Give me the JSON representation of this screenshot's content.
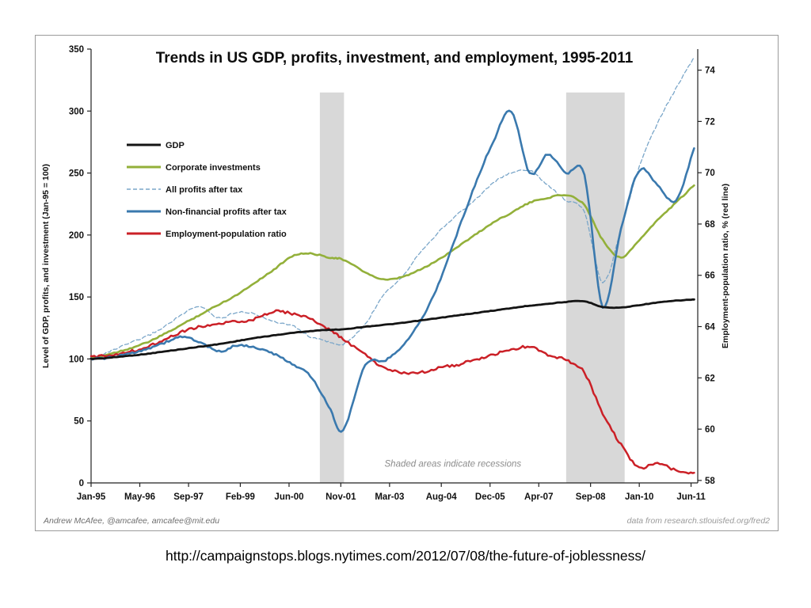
{
  "page": {
    "caption": "http://campaignstops.blogs.nytimes.com/2012/07/08/the-future-of-joblessness/"
  },
  "chart_data": {
    "type": "line",
    "title": "Trends in US GDP, profits, investment, and employment, 1995-2011",
    "annotation": "Shaded areas indicate recessions",
    "credit_left": "Andrew McAfee, @amcafee, amcafee@mit.edu",
    "credit_right": "data from research.stlouisfed.org/fred2",
    "band_color": "#d8d8d8",
    "recession_top_value": 315,
    "recessions": [
      {
        "from": 2001.26,
        "to": 2001.92
      },
      {
        "from": 2008.0,
        "to": 2009.6
      }
    ],
    "left_axis": {
      "label": "Level of GDP, profits, and investment (Jan-95 = 100)",
      "min": 0,
      "max": 350,
      "ticks": [
        0,
        50,
        100,
        150,
        200,
        250,
        300,
        350
      ]
    },
    "right_axis": {
      "label": "Employment-population ratio, % (red line)",
      "min": 58,
      "max": 74,
      "ticks": [
        58,
        60,
        62,
        64,
        66,
        68,
        70,
        72,
        74
      ],
      "left_equiv_min": 2,
      "left_per_unit": 20.6875
    },
    "x_axis": {
      "min": 1995.0,
      "max": 2011.6,
      "tick_labels": [
        "Jan-95",
        "May-96",
        "Sep-97",
        "Feb-99",
        "Jun-00",
        "Nov-01",
        "Mar-03",
        "Aug-04",
        "Dec-05",
        "Apr-07",
        "Sep-08",
        "Jan-10",
        "Jun-11"
      ],
      "tick_positions": [
        1995.0,
        1996.333,
        1997.667,
        1999.083,
        2000.417,
        2001.833,
        2003.167,
        2004.583,
        2005.917,
        2007.25,
        2008.667,
        2010.0,
        2011.417
      ]
    },
    "x": [
      1995,
      1995.5,
      1996,
      1996.5,
      1997,
      1997.5,
      1998,
      1998.5,
      1999,
      1999.5,
      2000,
      2000.5,
      2001,
      2001.5,
      2001.9,
      2002.5,
      2003,
      2003.5,
      2004,
      2004.5,
      2005,
      2005.5,
      2006,
      2006.5,
      2007,
      2007.5,
      2008,
      2008.5,
      2009,
      2009.5,
      2010,
      2010.5,
      2011,
      2011.5
    ],
    "series": [
      {
        "name": "GDP",
        "color": "#141414",
        "width": 2.8,
        "dash": null,
        "axis": "left",
        "values": [
          100,
          101,
          102.5,
          104,
          106,
          108,
          110,
          112,
          114.5,
          117,
          119,
          121,
          122.5,
          123.5,
          124,
          126,
          127.5,
          129,
          131,
          133,
          135,
          137,
          139,
          141,
          143,
          144.5,
          146,
          146.5,
          142,
          141.5,
          143.5,
          145.5,
          147,
          148
        ]
      },
      {
        "name": "Corporate investments",
        "color": "#93b03a",
        "width": 2.6,
        "dash": null,
        "axis": "left",
        "values": [
          100,
          104,
          108,
          113,
          120,
          128,
          136,
          144,
          152,
          162,
          172,
          183,
          185,
          182,
          180,
          170,
          164,
          166,
          172,
          180,
          190,
          200,
          210,
          218,
          226,
          230,
          232,
          224,
          196,
          182,
          196,
          212,
          226,
          240
        ]
      },
      {
        "name": "All profits after tax",
        "color": "#7aa6c9",
        "width": 1.3,
        "dash": "5,3",
        "axis": "left",
        "values": [
          100,
          106,
          112,
          118,
          126,
          136,
          142,
          133,
          138,
          136,
          130,
          127,
          118,
          114,
          112,
          128,
          152,
          166,
          186,
          202,
          216,
          228,
          242,
          250,
          252,
          240,
          228,
          218,
          162,
          205,
          255,
          290,
          318,
          343
        ]
      },
      {
        "name": "Non-financial profits after tax",
        "color": "#3a79ae",
        "width": 2.6,
        "dash": null,
        "axis": "left",
        "values": [
          100,
          101,
          104,
          108,
          113,
          118,
          113,
          106,
          111,
          109,
          104,
          96,
          86,
          62,
          43,
          95,
          98,
          110,
          130,
          160,
          200,
          240,
          275,
          300,
          250,
          265,
          250,
          248,
          142,
          205,
          252,
          240,
          228,
          270
        ]
      },
      {
        "name": "Employment-population ratio",
        "color": "#cb2027",
        "width": 2.5,
        "dash": null,
        "axis": "right",
        "values": [
          62.8,
          62.9,
          63.0,
          63.2,
          63.5,
          63.8,
          64.0,
          64.1,
          64.2,
          64.3,
          64.6,
          64.5,
          64.3,
          63.9,
          63.5,
          62.9,
          62.4,
          62.2,
          62.2,
          62.4,
          62.5,
          62.7,
          62.9,
          63.1,
          63.2,
          62.9,
          62.7,
          62.2,
          60.6,
          59.4,
          58.5,
          58.7,
          58.4,
          58.3
        ]
      }
    ]
  }
}
